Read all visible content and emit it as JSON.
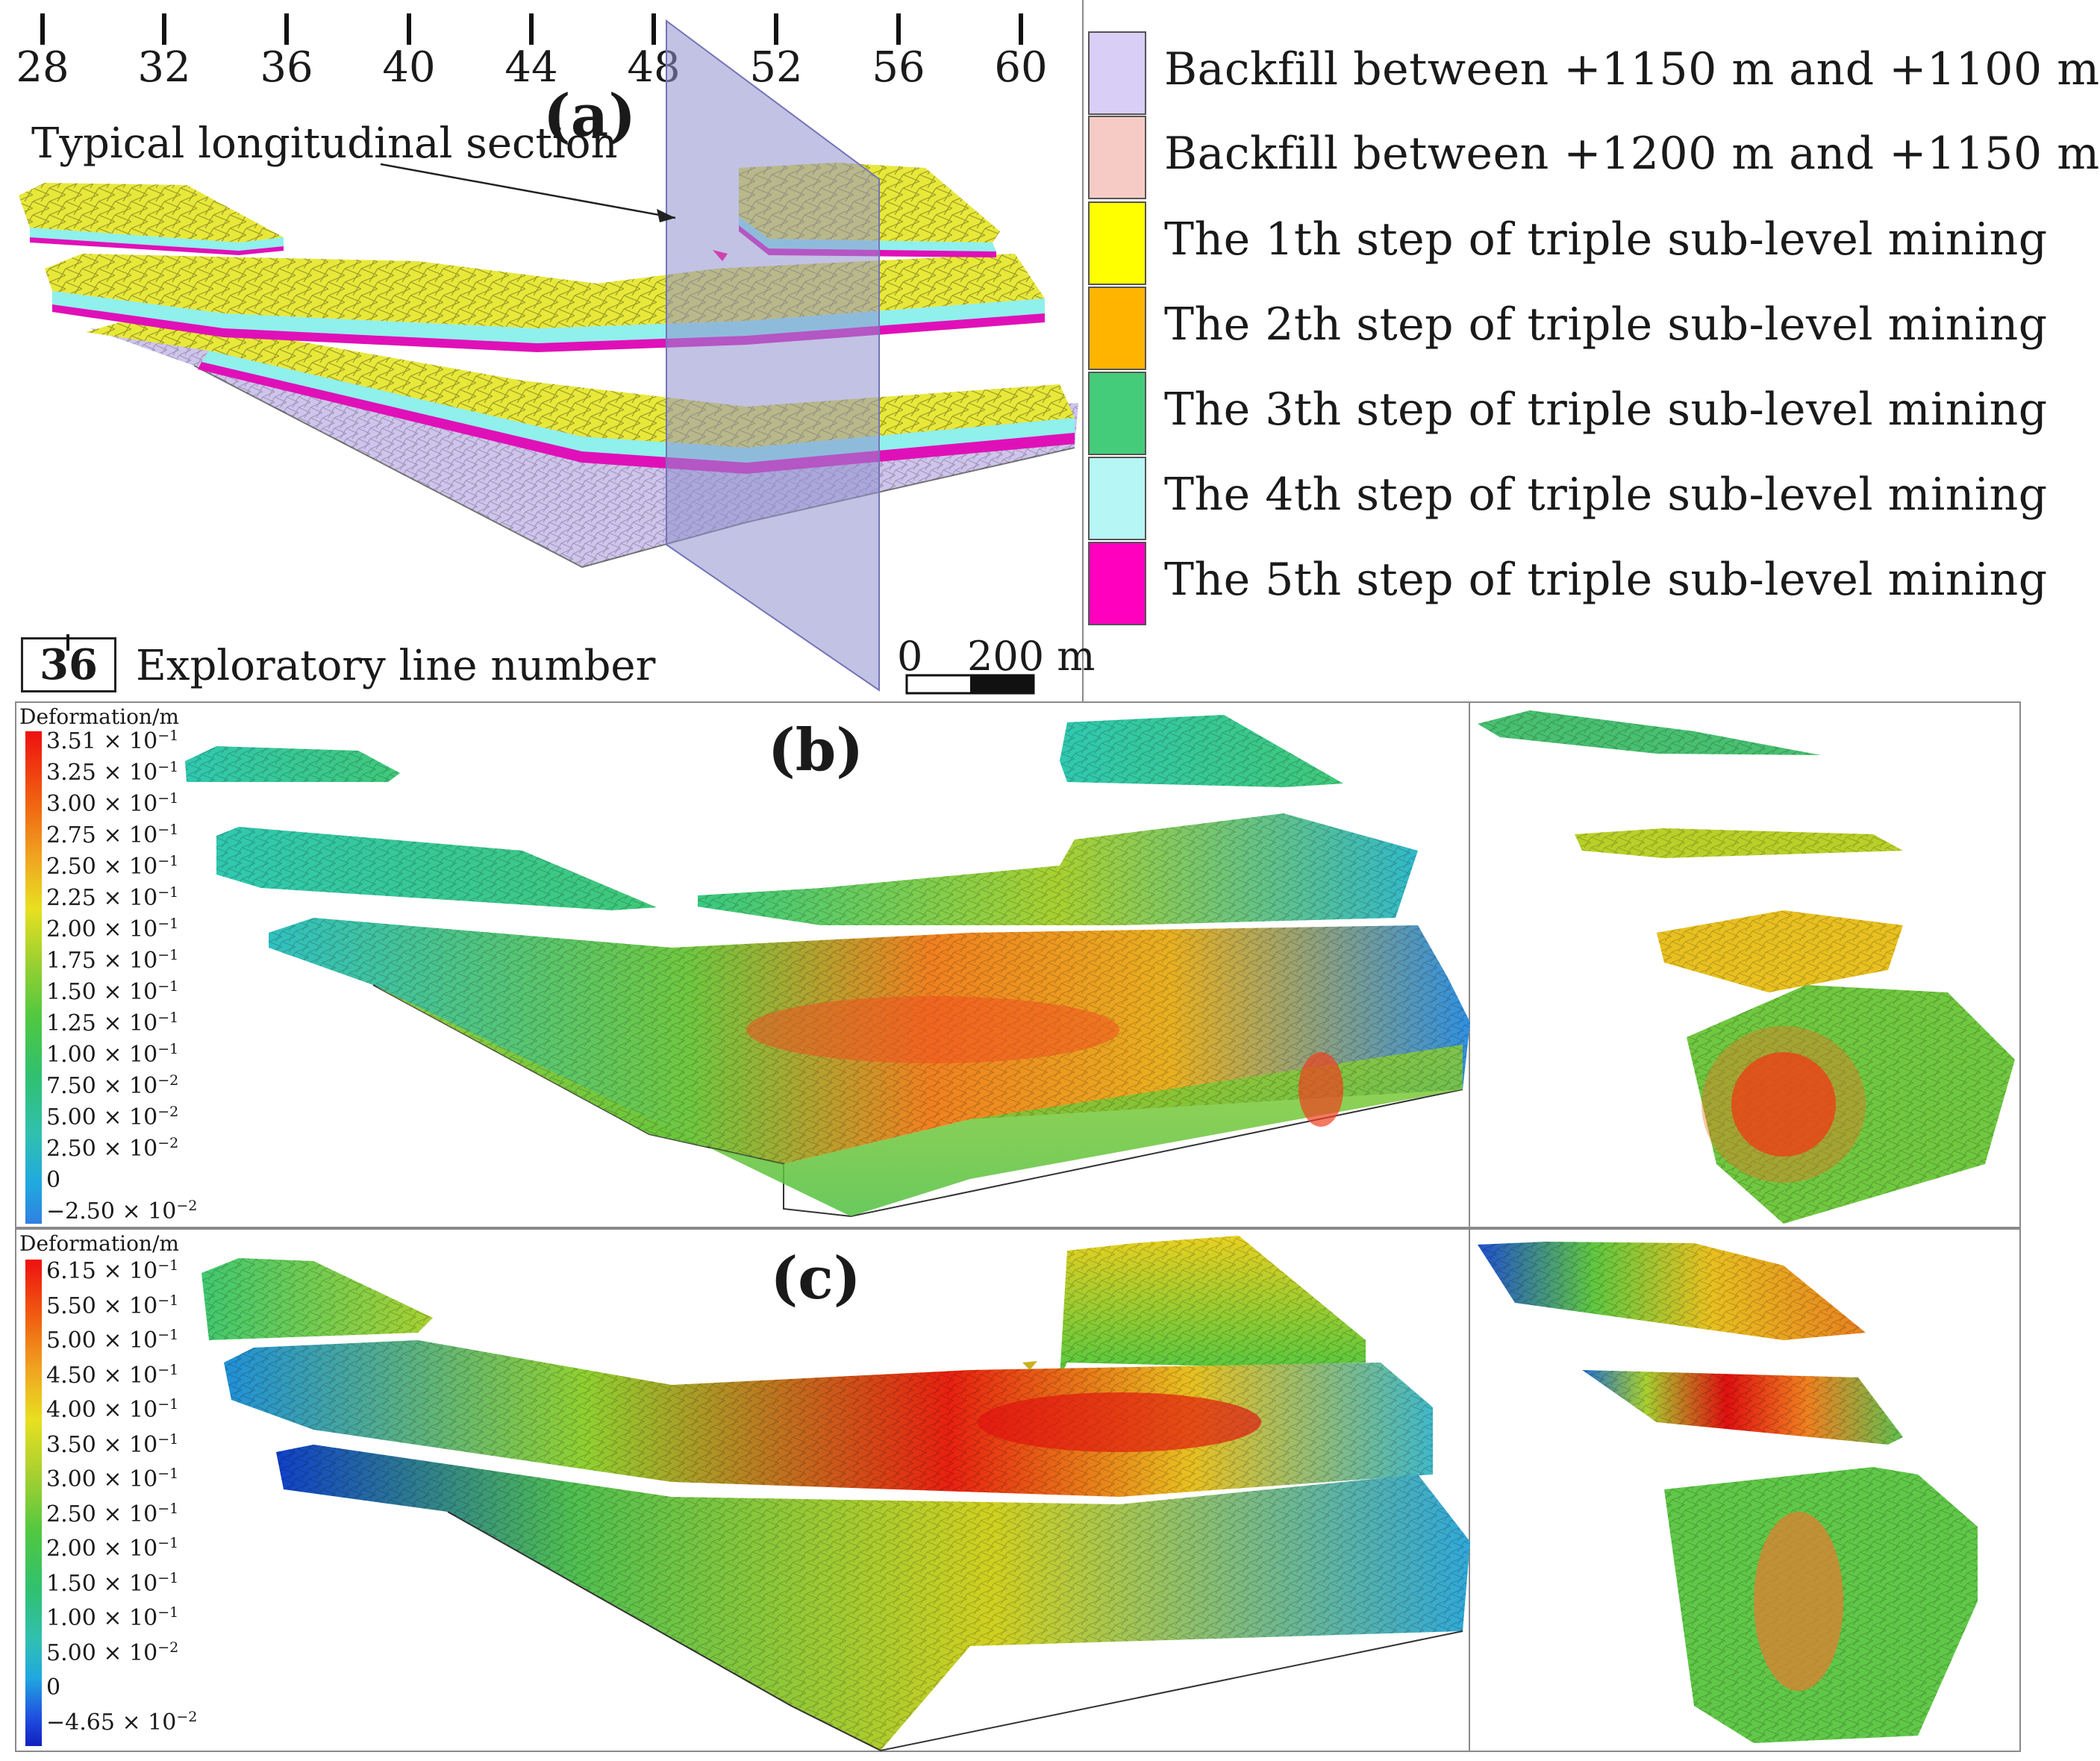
{
  "panel_a": {
    "label": "(a)",
    "ticks": [
      "28",
      "32",
      "36",
      "40",
      "44",
      "48",
      "52",
      "56",
      "60"
    ],
    "section_label": "Typical longitudinal section",
    "line_number_box": "36",
    "line_number_text": "Exploratory line number",
    "scale": {
      "zero": "0",
      "length": "200 m"
    },
    "legend": [
      {
        "label": "Backfill between +1150 m and +1100 m",
        "color": "#d9cef5"
      },
      {
        "label": "Backfill between +1200 m and +1150 m",
        "color": "#f6cbc6"
      },
      {
        "label": "The 1th step of triple sub-level mining",
        "color": "#ffff00"
      },
      {
        "label": "The 2th step of triple sub-level mining",
        "color": "#ffb400"
      },
      {
        "label": "The 3th step of triple sub-level mining",
        "color": "#44cc7a"
      },
      {
        "label": "The 4th step of triple sub-level mining",
        "color": "#b6f6f4"
      },
      {
        "label": "The 5th step of triple sub-level mining",
        "color": "#ff00bf"
      }
    ]
  },
  "panel_b": {
    "label": "(b)",
    "colorbar_title": "Deformation/m",
    "colorbar": [
      {
        "mant": "3.51",
        "exp": "−1"
      },
      {
        "mant": "3.25",
        "exp": "−1"
      },
      {
        "mant": "3.00",
        "exp": "−1"
      },
      {
        "mant": "2.75",
        "exp": "−1"
      },
      {
        "mant": "2.50",
        "exp": "−1"
      },
      {
        "mant": "2.25",
        "exp": "−1"
      },
      {
        "mant": "2.00",
        "exp": "−1"
      },
      {
        "mant": "1.75",
        "exp": "−1"
      },
      {
        "mant": "1.50",
        "exp": "−1"
      },
      {
        "mant": "1.25",
        "exp": "−1"
      },
      {
        "mant": "1.00",
        "exp": "−1"
      },
      {
        "mant": "7.50",
        "exp": "−2"
      },
      {
        "mant": "5.00",
        "exp": "−2"
      },
      {
        "mant": "2.50",
        "exp": "−2"
      },
      {
        "mant": "0",
        "exp": ""
      },
      {
        "mant": "−2.50",
        "exp": "−2"
      }
    ]
  },
  "panel_c": {
    "label": "(c)",
    "colorbar_title": "Deformation/m",
    "colorbar": [
      {
        "mant": "6.15",
        "exp": "−1"
      },
      {
        "mant": "5.50",
        "exp": "−1"
      },
      {
        "mant": "5.00",
        "exp": "−1"
      },
      {
        "mant": "4.50",
        "exp": "−1"
      },
      {
        "mant": "4.00",
        "exp": "−1"
      },
      {
        "mant": "3.50",
        "exp": "−1"
      },
      {
        "mant": "3.00",
        "exp": "−1"
      },
      {
        "mant": "2.50",
        "exp": "−1"
      },
      {
        "mant": "2.00",
        "exp": "−1"
      },
      {
        "mant": "1.50",
        "exp": "−1"
      },
      {
        "mant": "1.00",
        "exp": "−1"
      },
      {
        "mant": "5.00",
        "exp": "−2"
      },
      {
        "mant": "0",
        "exp": ""
      },
      {
        "mant": "−4.65",
        "exp": "−2"
      }
    ]
  },
  "colors": {
    "section_plane": "#8f8fce",
    "yellow": "#e8e83a",
    "cyan": "#8ff0ec",
    "magenta": "#e010b8",
    "backfill_pink": "#efc2bd",
    "backfill_lilac": "#cfc4ec",
    "frame": "#8a8a8a"
  }
}
